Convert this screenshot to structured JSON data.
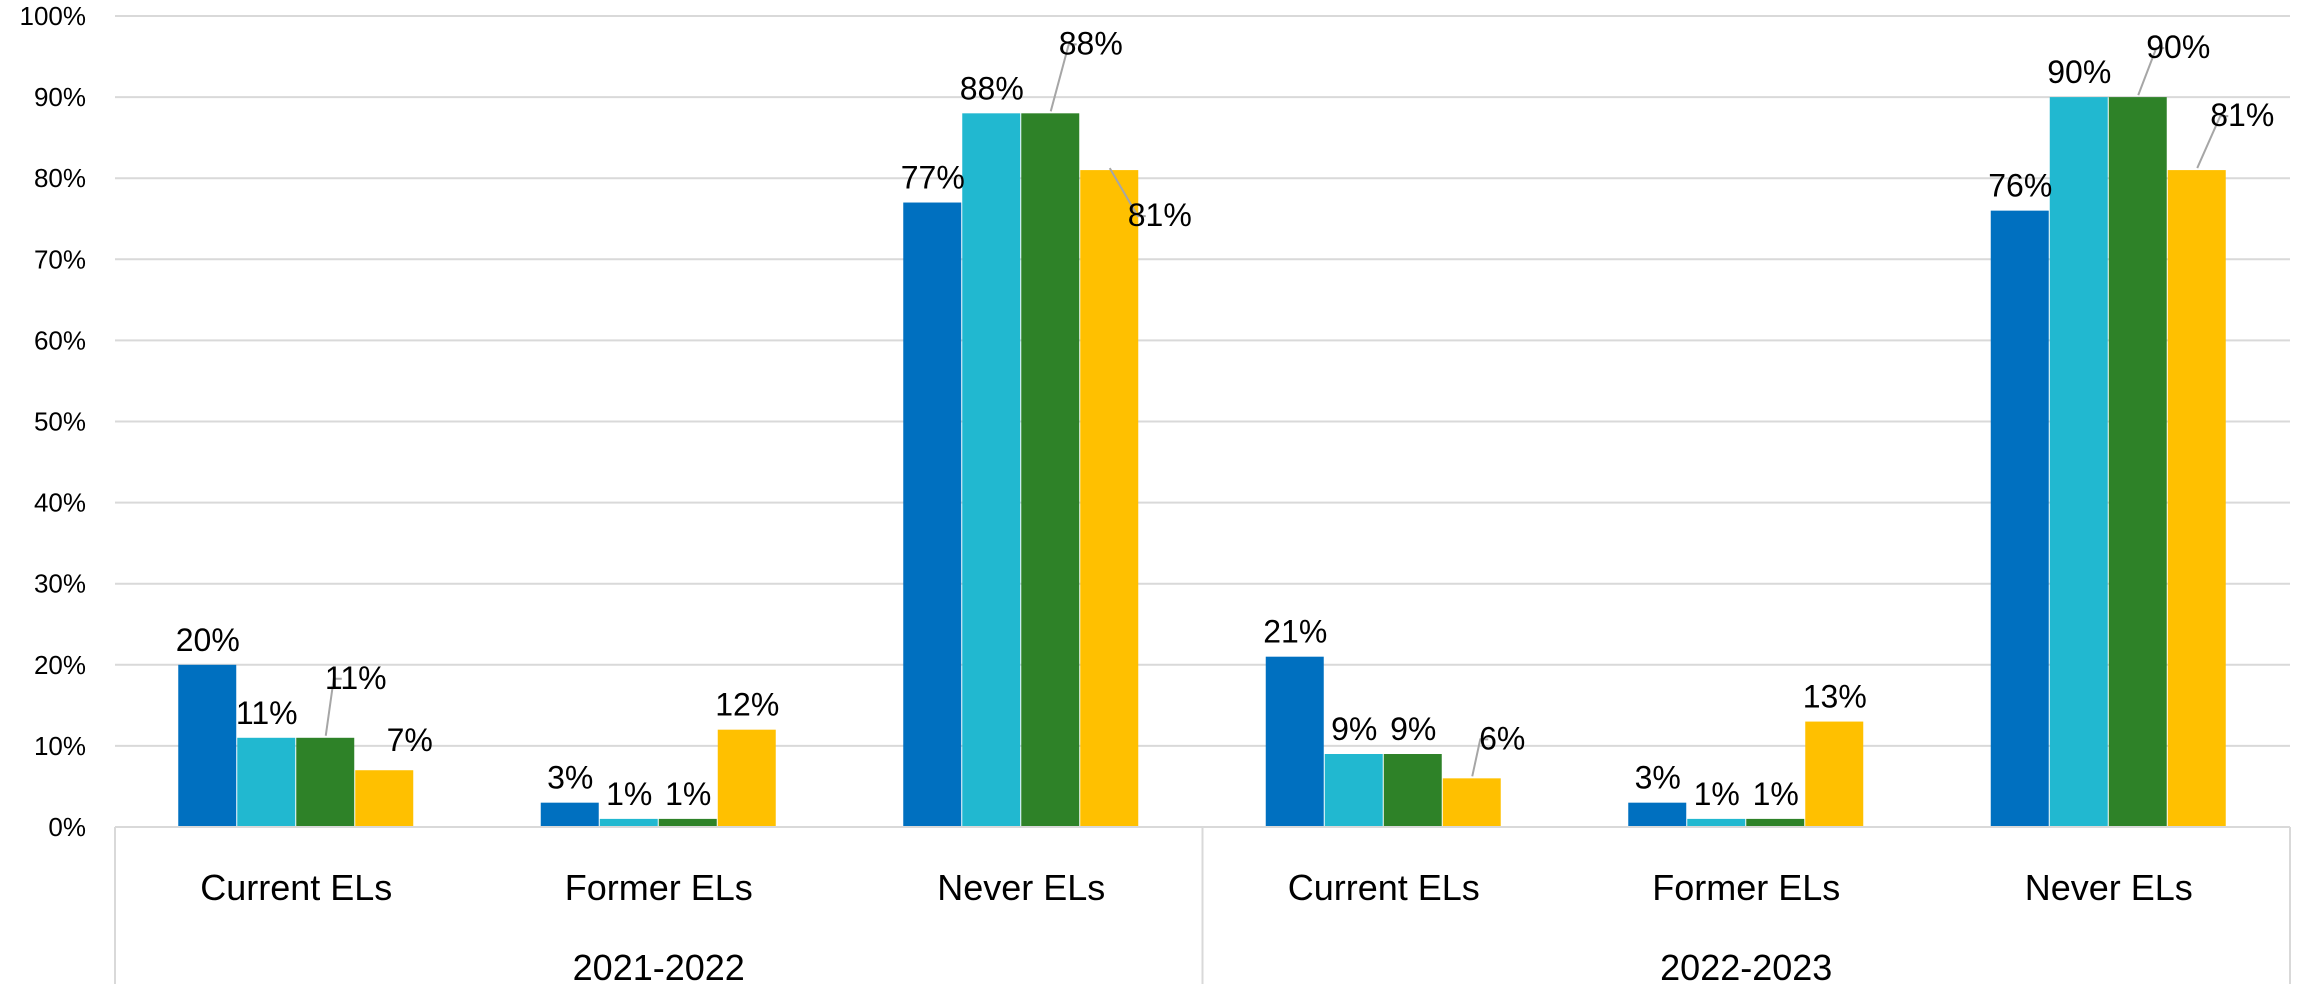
{
  "chart_data": {
    "type": "bar",
    "ylim": [
      0,
      100
    ],
    "y_ticks": [
      "0%",
      "10%",
      "20%",
      "30%",
      "40%",
      "50%",
      "60%",
      "70%",
      "80%",
      "90%",
      "100%"
    ],
    "grid": true,
    "legend": "none",
    "groups": [
      {
        "label": "2021-2022",
        "categories": [
          {
            "label": "Current ELs",
            "values": [
              20,
              11,
              11,
              7
            ],
            "labels": [
              "20%",
              "11%",
              "11%",
              "7%"
            ]
          },
          {
            "label": "Former ELs",
            "values": [
              3,
              1,
              1,
              12
            ],
            "labels": [
              "3%",
              "1%",
              "1%",
              "12%"
            ]
          },
          {
            "label": "Never ELs",
            "values": [
              77,
              88,
              88,
              81
            ],
            "labels": [
              "77%",
              "88%",
              "88%",
              "81%"
            ]
          }
        ]
      },
      {
        "label": "2022-2023",
        "categories": [
          {
            "label": "Current ELs",
            "values": [
              21,
              9,
              9,
              6
            ],
            "labels": [
              "21%",
              "9%",
              "9%",
              "6%"
            ]
          },
          {
            "label": "Former ELs",
            "values": [
              3,
              1,
              1,
              13
            ],
            "labels": [
              "3%",
              "1%",
              "1%",
              "13%"
            ]
          },
          {
            "label": "Never ELs",
            "values": [
              76,
              90,
              90,
              81
            ],
            "labels": [
              "76%",
              "90%",
              "90%",
              "81%"
            ]
          }
        ]
      }
    ],
    "series_colors": [
      "#0070C0",
      "#21B8D0",
      "#2E8228",
      "#FFC000"
    ]
  }
}
